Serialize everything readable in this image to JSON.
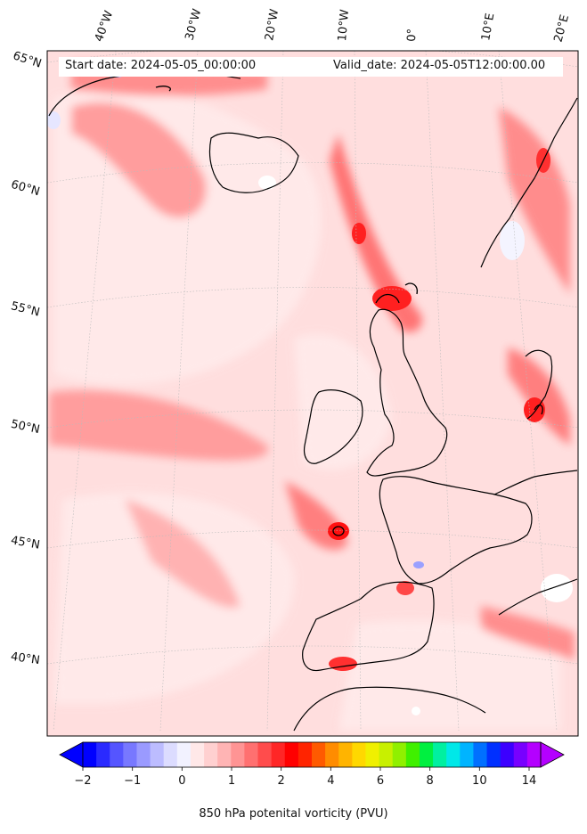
{
  "header": {
    "start_date": "Start date: 2024-05-05_00:00:00",
    "valid_date": "Valid_date: 2024-05-05T12:00:00.00"
  },
  "graticule": {
    "lon_labels": [
      "40°W",
      "30°W",
      "20°W",
      "10°W",
      "0°",
      "10°E",
      "20°E"
    ],
    "lat_labels": [
      "65°N",
      "60°N",
      "55°N",
      "50°N",
      "45°N",
      "40°N"
    ]
  },
  "colorbar": {
    "title": "850 hPa potenital vorticity (PVU)",
    "tick_labels": [
      "−2",
      "−1",
      "0",
      "1",
      "2",
      "4",
      "6",
      "8",
      "10",
      "14"
    ],
    "colors": [
      "#0000ff",
      "#2a2aff",
      "#5555ff",
      "#7878ff",
      "#9a9aff",
      "#bcbcff",
      "#dcdcff",
      "#f2f2ff",
      "#ffe8e8",
      "#ffd0d0",
      "#ffb4b4",
      "#ff9494",
      "#ff7070",
      "#ff4c4c",
      "#ff2626",
      "#ff0000",
      "#ff2400",
      "#ff5a00",
      "#ff8c00",
      "#ffb400",
      "#ffd800",
      "#f0f000",
      "#c8f000",
      "#90f000",
      "#40f000",
      "#00f040",
      "#00f0a0",
      "#00e8e8",
      "#00b4ff",
      "#0070ff",
      "#0030ff",
      "#3c00ff",
      "#7800ff",
      "#b400ff"
    ]
  },
  "colors": {
    "background_field": "#ffdede",
    "coastline": "#000000"
  }
}
